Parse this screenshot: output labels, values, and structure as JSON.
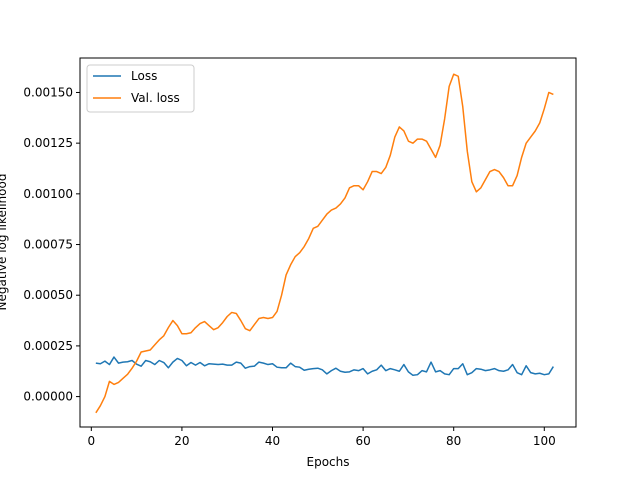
{
  "chart_data": {
    "type": "line",
    "xlabel": "Epochs",
    "ylabel": "Negative log likelihood",
    "xlim": [
      -2.5,
      107
    ],
    "ylim": [
      -0.00015,
      0.00167
    ],
    "xticks": [
      0,
      20,
      40,
      60,
      80,
      100
    ],
    "xtick_labels": [
      "0",
      "20",
      "40",
      "60",
      "80",
      "100"
    ],
    "yticks": [
      0,
      0.00025,
      0.0005,
      0.00075,
      0.001,
      0.00125,
      0.0015
    ],
    "ytick_labels": [
      "0.00000",
      "0.00025",
      "0.00050",
      "0.00075",
      "0.00100",
      "0.00125",
      "0.00150"
    ],
    "grid": false,
    "legend_position": "top-left",
    "series": [
      {
        "name": "Loss",
        "color": "#1f77b4",
        "x": [
          1,
          2,
          3,
          4,
          5,
          6,
          7,
          8,
          9,
          10,
          11,
          12,
          13,
          14,
          15,
          16,
          17,
          18,
          19,
          20,
          21,
          22,
          23,
          24,
          25,
          26,
          27,
          28,
          29,
          30,
          31,
          32,
          33,
          34,
          35,
          36,
          37,
          38,
          39,
          40,
          41,
          42,
          43,
          44,
          45,
          46,
          47,
          48,
          49,
          50,
          51,
          52,
          53,
          54,
          55,
          56,
          57,
          58,
          59,
          60,
          61,
          62,
          63,
          64,
          65,
          66,
          67,
          68,
          69,
          70,
          71,
          72,
          73,
          74,
          75,
          76,
          77,
          78,
          79,
          80,
          81,
          82,
          83,
          84,
          85,
          86,
          87,
          88,
          89,
          90,
          91,
          92,
          93,
          94,
          95,
          96,
          97,
          98,
          99,
          100,
          101,
          102
        ],
        "values": [
          0.000165,
          0.000162,
          0.000175,
          0.000158,
          0.000195,
          0.000165,
          0.00017,
          0.000172,
          0.000178,
          0.00016,
          0.00015,
          0.000178,
          0.000172,
          0.000158,
          0.000178,
          0.000168,
          0.000142,
          0.00017,
          0.000188,
          0.000178,
          0.000152,
          0.000168,
          0.000155,
          0.000168,
          0.000152,
          0.000162,
          0.00016,
          0.000158,
          0.00016,
          0.000155,
          0.000155,
          0.00017,
          0.000165,
          0.00014,
          0.000148,
          0.00015,
          0.00017,
          0.000165,
          0.000158,
          0.000162,
          0.000145,
          0.000142,
          0.000142,
          0.000165,
          0.000148,
          0.000145,
          0.00013,
          0.000135,
          0.000138,
          0.00014,
          0.000132,
          0.000112,
          0.000128,
          0.00014,
          0.000125,
          0.00012,
          0.000122,
          0.000132,
          0.000128,
          0.000138,
          0.000112,
          0.000125,
          0.000132,
          0.000155,
          0.000128,
          0.000138,
          0.000132,
          0.000125,
          0.000158,
          0.000122,
          0.000105,
          0.000108,
          0.000128,
          0.000122,
          0.00017,
          0.000122,
          0.000128,
          0.000112,
          0.000108,
          0.000138,
          0.000138,
          0.000162,
          0.000108,
          0.000118,
          0.000138,
          0.000135,
          0.000128,
          0.000132,
          0.000138,
          0.000128,
          0.000125,
          0.000132,
          0.000158,
          0.000118,
          0.000108,
          0.000152,
          0.000118,
          0.000112,
          0.000115,
          0.000108,
          0.000112,
          0.000148
        ]
      },
      {
        "name": "Val. loss",
        "color": "#ff7f0e",
        "x": [
          1,
          2,
          3,
          4,
          5,
          6,
          7,
          8,
          9,
          10,
          11,
          12,
          13,
          14,
          15,
          16,
          17,
          18,
          19,
          20,
          21,
          22,
          23,
          24,
          25,
          26,
          27,
          28,
          29,
          30,
          31,
          32,
          33,
          34,
          35,
          36,
          37,
          38,
          39,
          40,
          41,
          42,
          43,
          44,
          45,
          46,
          47,
          48,
          49,
          50,
          51,
          52,
          53,
          54,
          55,
          56,
          57,
          58,
          59,
          60,
          61,
          62,
          63,
          64,
          65,
          66,
          67,
          68,
          69,
          70,
          71,
          72,
          73,
          74,
          75,
          76,
          77,
          78,
          79,
          80,
          81,
          82,
          83,
          84,
          85,
          86,
          87,
          88,
          89,
          90,
          91,
          92,
          93,
          94,
          95,
          96,
          97,
          98,
          99,
          100,
          101,
          102
        ],
        "values": [
          -8e-05,
          -4.5e-05,
          0.0,
          7.5e-05,
          6e-05,
          7e-05,
          9e-05,
          0.00011,
          0.00014,
          0.000175,
          0.00022,
          0.000225,
          0.00023,
          0.000255,
          0.00028,
          0.0003,
          0.00034,
          0.000375,
          0.00035,
          0.00031,
          0.00031,
          0.000315,
          0.00034,
          0.00036,
          0.00037,
          0.00035,
          0.00033,
          0.00034,
          0.000365,
          0.000395,
          0.000415,
          0.00041,
          0.000375,
          0.000335,
          0.000325,
          0.000355,
          0.000385,
          0.00039,
          0.000385,
          0.00039,
          0.00042,
          0.0005,
          0.0006,
          0.00065,
          0.00069,
          0.00071,
          0.00074,
          0.00078,
          0.00083,
          0.00084,
          0.00087,
          0.0009,
          0.00092,
          0.00093,
          0.00095,
          0.00098,
          0.00103,
          0.00104,
          0.00104,
          0.00102,
          0.00106,
          0.00111,
          0.00111,
          0.0011,
          0.00113,
          0.00119,
          0.00128,
          0.00133,
          0.00131,
          0.00126,
          0.00125,
          0.00127,
          0.00127,
          0.00126,
          0.00122,
          0.00118,
          0.00124,
          0.00137,
          0.00153,
          0.00159,
          0.00158,
          0.00143,
          0.00121,
          0.00106,
          0.00101,
          0.00103,
          0.00107,
          0.00111,
          0.00112,
          0.00111,
          0.00108,
          0.00104,
          0.00104,
          0.00109,
          0.00118,
          0.00125,
          0.00128,
          0.00131,
          0.00135,
          0.00142,
          0.0015,
          0.00149
        ]
      }
    ]
  }
}
